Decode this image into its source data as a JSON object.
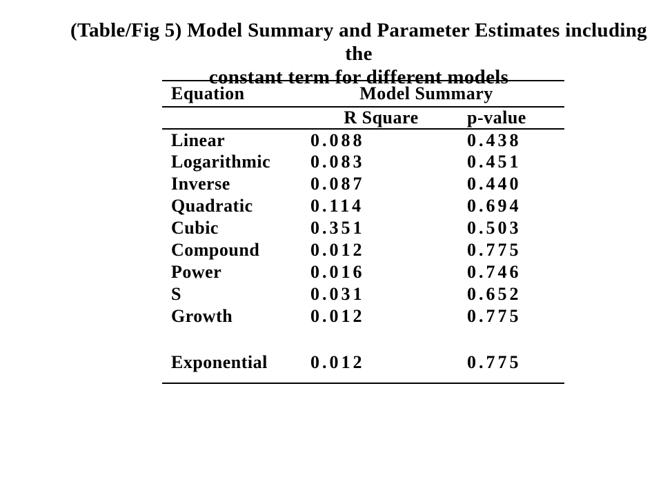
{
  "title": {
    "line1": "(Table/Fig 5) Model Summary and Parameter Estimates including the",
    "line2": "constant term for different models"
  },
  "table": {
    "equation_header": "Equation",
    "group_header": "Model Summary",
    "sub_headers": [
      "R Square",
      "p-value"
    ],
    "rows": [
      {
        "equation": "Linear",
        "r_square": "0.088",
        "p_value": "0.438"
      },
      {
        "equation": "Logarithmic",
        "r_square": "0.083",
        "p_value": "0.451"
      },
      {
        "equation": "Inverse",
        "r_square": "0.087",
        "p_value": "0.440"
      },
      {
        "equation": "Quadratic",
        "r_square": "0.114",
        "p_value": "0.694"
      },
      {
        "equation": "Cubic",
        "r_square": "0.351",
        "p_value": "0.503"
      },
      {
        "equation": "Compound",
        "r_square": "0.012",
        "p_value": "0.775"
      },
      {
        "equation": "Power",
        "r_square": "0.016",
        "p_value": "0.746"
      },
      {
        "equation": "S",
        "r_square": "0.031",
        "p_value": "0.652"
      },
      {
        "equation": "Growth",
        "r_square": "0.012",
        "p_value": "0.775"
      },
      {
        "equation": "Exponential",
        "r_square": "0.012",
        "p_value": "0.775"
      }
    ]
  },
  "colors": {
    "text": "#000000",
    "background": "#ffffff",
    "rule": "#000000"
  }
}
